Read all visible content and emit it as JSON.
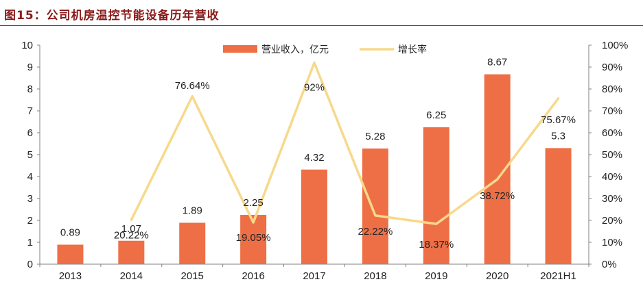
{
  "page": {
    "title": "图15：公司机房温控节能设备历年营收"
  },
  "chart_data": {
    "type": "bar+line",
    "title": "图15：公司机房温控节能设备历年营收",
    "categories": [
      "2013",
      "2014",
      "2015",
      "2016",
      "2017",
      "2018",
      "2019",
      "2020",
      "2021H1"
    ],
    "series": [
      {
        "name": "营业收入，亿元",
        "type": "bar",
        "axis": "left",
        "color": "#EE6F45",
        "values": [
          0.89,
          1.07,
          1.89,
          2.25,
          4.32,
          5.28,
          6.25,
          8.67,
          5.3
        ],
        "labels": [
          "0.89",
          "1.07",
          "1.89",
          "2.25",
          "4.32",
          "5.28",
          "6.25",
          "8.67",
          "5.3"
        ]
      },
      {
        "name": "增长率",
        "type": "line",
        "axis": "right",
        "color": "#F7D98B",
        "values": [
          null,
          20.22,
          76.64,
          19.05,
          92,
          22.22,
          18.37,
          38.72,
          75.67
        ],
        "labels": [
          null,
          "20.22%",
          "76.64%",
          "19.05%",
          "92%",
          "22.22%",
          "18.37%",
          "38.72%",
          "75.67%"
        ]
      }
    ],
    "y_left": {
      "range": [
        0,
        10
      ],
      "ticks": [
        "0",
        "1",
        "2",
        "3",
        "4",
        "5",
        "6",
        "7",
        "8",
        "9",
        "10"
      ]
    },
    "y_right": {
      "range": [
        0,
        100
      ],
      "ticks": [
        "0%",
        "10%",
        "20%",
        "30%",
        "40%",
        "50%",
        "60%",
        "70%",
        "80%",
        "90%",
        "100%"
      ]
    },
    "legend_position": "top-center",
    "grid": false
  }
}
